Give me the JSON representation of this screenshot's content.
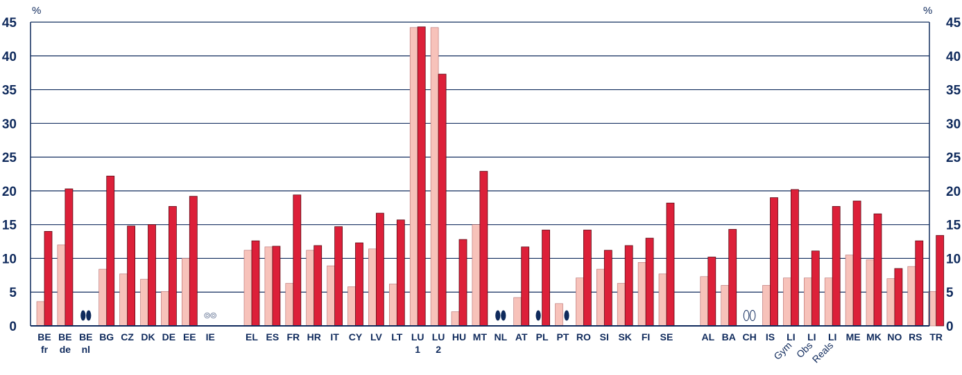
{
  "chart_data": {
    "type": "bar",
    "unit_left": "%",
    "unit_right": "%",
    "ylim": [
      0,
      45
    ],
    "yticks": [
      "0",
      "5",
      "10",
      "15",
      "20",
      "25",
      "30",
      "35",
      "40",
      "45"
    ],
    "grid": true,
    "colors": {
      "light": "#f7c2ba",
      "dark": "#dc2039",
      "grid": "#0f2a5c",
      "text": "#0f2a5c"
    },
    "categories": [
      {
        "label": "BE",
        "sub": "fr",
        "light": 3.6,
        "dark": 14.0,
        "marker": null
      },
      {
        "label": "BE",
        "sub": "de",
        "light": 12.0,
        "dark": 20.3,
        "marker": null
      },
      {
        "label": "BE",
        "sub": "nl",
        "light": null,
        "dark": null,
        "marker": "filled-pair"
      },
      {
        "label": "BG",
        "sub": "",
        "light": 8.4,
        "dark": 22.2,
        "marker": null
      },
      {
        "label": "CZ",
        "sub": "",
        "light": 7.7,
        "dark": 14.8,
        "marker": null
      },
      {
        "label": "DK",
        "sub": "",
        "light": 6.9,
        "dark": 15.0,
        "marker": null
      },
      {
        "label": "DE",
        "sub": "",
        "light": 5.1,
        "dark": 17.7,
        "marker": null
      },
      {
        "label": "EE",
        "sub": "",
        "light": 10.0,
        "dark": 19.2,
        "marker": null
      },
      {
        "label": "IE",
        "sub": "",
        "light": null,
        "dark": null,
        "marker": "small-pair"
      },
      {
        "label": "",
        "sub": "",
        "light": null,
        "dark": null,
        "marker": null
      },
      {
        "label": "EL",
        "sub": "",
        "light": 11.2,
        "dark": 12.6,
        "marker": null
      },
      {
        "label": "ES",
        "sub": "",
        "light": 11.7,
        "dark": 11.8,
        "marker": null
      },
      {
        "label": "FR",
        "sub": "",
        "light": 6.3,
        "dark": 19.4,
        "marker": null
      },
      {
        "label": "HR",
        "sub": "",
        "light": 11.2,
        "dark": 11.9,
        "marker": null
      },
      {
        "label": "IT",
        "sub": "",
        "light": 8.9,
        "dark": 14.7,
        "marker": null
      },
      {
        "label": "CY",
        "sub": "",
        "light": 5.8,
        "dark": 12.3,
        "marker": null
      },
      {
        "label": "LV",
        "sub": "",
        "light": 11.4,
        "dark": 16.7,
        "marker": null
      },
      {
        "label": "LT",
        "sub": "",
        "light": 6.2,
        "dark": 15.7,
        "marker": null
      },
      {
        "label": "LU",
        "sub": "1",
        "light": 44.2,
        "dark": 44.3,
        "marker": null
      },
      {
        "label": "LU",
        "sub": "2",
        "light": 44.2,
        "dark": 37.3,
        "marker": null
      },
      {
        "label": "HU",
        "sub": "",
        "light": 2.1,
        "dark": 12.8,
        "marker": null
      },
      {
        "label": "MT",
        "sub": "",
        "light": 15.0,
        "dark": 22.9,
        "marker": null
      },
      {
        "label": "NL",
        "sub": "",
        "light": null,
        "dark": null,
        "marker": "filled-pair"
      },
      {
        "label": "AT",
        "sub": "",
        "light": 4.2,
        "dark": 11.7,
        "marker": null
      },
      {
        "label": "PL",
        "sub": "",
        "light": null,
        "dark": 14.2,
        "marker": "filled-left"
      },
      {
        "label": "PT",
        "sub": "",
        "light": 3.3,
        "dark": null,
        "marker": "filled-right"
      },
      {
        "label": "RO",
        "sub": "",
        "light": 7.1,
        "dark": 14.2,
        "marker": null
      },
      {
        "label": "SI",
        "sub": "",
        "light": 8.4,
        "dark": 11.2,
        "marker": null
      },
      {
        "label": "SK",
        "sub": "",
        "light": 6.3,
        "dark": 11.9,
        "marker": null
      },
      {
        "label": "FI",
        "sub": "",
        "light": 9.4,
        "dark": 13.0,
        "marker": null
      },
      {
        "label": "SE",
        "sub": "",
        "light": 7.7,
        "dark": 18.2,
        "marker": null
      },
      {
        "label": "",
        "sub": "",
        "light": null,
        "dark": null,
        "marker": null
      },
      {
        "label": "AL",
        "sub": "",
        "light": 7.3,
        "dark": 10.2,
        "marker": null
      },
      {
        "label": "BA",
        "sub": "",
        "light": 6.0,
        "dark": 14.3,
        "marker": null
      },
      {
        "label": "CH",
        "sub": "",
        "light": null,
        "dark": null,
        "marker": "open-pair"
      },
      {
        "label": "IS",
        "sub": "",
        "light": 6.0,
        "dark": 19.0,
        "marker": null
      },
      {
        "label": "LI",
        "sub": "Gym",
        "light": 7.1,
        "dark": 20.2,
        "marker": null
      },
      {
        "label": "LI",
        "sub": "Obs",
        "light": 7.1,
        "dark": 11.1,
        "marker": null
      },
      {
        "label": "LI",
        "sub": "Reals",
        "light": 7.1,
        "dark": 17.7,
        "marker": null
      },
      {
        "label": "ME",
        "sub": "",
        "light": 10.5,
        "dark": 18.5,
        "marker": null
      },
      {
        "label": "MK",
        "sub": "",
        "light": 9.8,
        "dark": 16.6,
        "marker": null
      },
      {
        "label": "NO",
        "sub": "",
        "light": 7.0,
        "dark": 8.5,
        "marker": null
      },
      {
        "label": "RS",
        "sub": "",
        "light": 8.8,
        "dark": 12.6,
        "marker": null
      },
      {
        "label": "TR",
        "sub": "",
        "light": 5.1,
        "dark": 13.4,
        "marker": null
      }
    ]
  }
}
